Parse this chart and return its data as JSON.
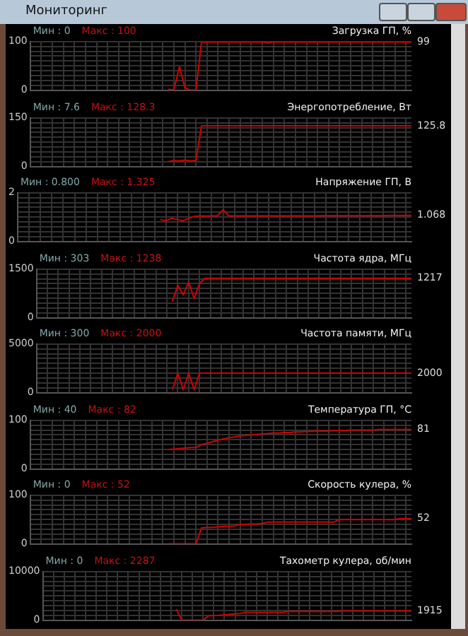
{
  "chart_data": [
    {
      "type": "line",
      "subtitle": "Мониторинг",
      "title": "Загрузка ГП, %",
      "categories": [
        null,
        null,
        null,
        null,
        null,
        null,
        null,
        null,
        null,
        null,
        null,
        null,
        null,
        null,
        null,
        null,
        null,
        null,
        null,
        null,
        null,
        null,
        null,
        null,
        null,
        null,
        null,
        null,
        null,
        null,
        null,
        null,
        null,
        null,
        null,
        null,
        null,
        null,
        null,
        null,
        null,
        null,
        null,
        null,
        null,
        null,
        null,
        null,
        null,
        null,
        null,
        null,
        null,
        null,
        null,
        null,
        null,
        null,
        null,
        null,
        null,
        null,
        null,
        null,
        null,
        null,
        null,
        null,
        null,
        null
      ],
      "series": [
        {
          "color": "#d00000",
          "values": [
            null,
            null,
            null,
            null,
            null,
            null,
            null,
            null,
            null,
            null,
            null,
            null,
            null,
            null,
            null,
            null,
            null,
            null,
            null,
            null,
            null,
            null,
            null,
            null,
            null,
            2,
            0,
            48,
            5,
            0,
            0,
            99,
            99,
            99,
            99,
            99,
            99,
            99,
            99,
            99,
            99,
            99,
            99,
            97,
            99,
            99,
            99,
            99,
            99,
            99,
            99,
            99,
            99,
            99,
            99,
            99,
            99,
            99,
            99,
            99,
            99,
            99,
            99,
            99,
            99,
            99,
            99,
            99,
            99,
            99
          ]
        }
      ],
      "ylim": [
        0,
        100
      ],
      "yticks": [
        0,
        {
          "value": 10,
          "label": null
        },
        {
          "value": 20,
          "label": null
        },
        {
          "value": 30,
          "label": null
        },
        {
          "value": 40,
          "label": null
        },
        {
          "value": 50,
          "label": null
        },
        {
          "value": 60,
          "label": null
        },
        {
          "value": 70,
          "label": null
        },
        {
          "value": 80,
          "label": null
        },
        {
          "value": 90,
          "label": null
        },
        100
      ],
      "annotations": [
        "Мин : 0",
        "Макс : 100",
        "99"
      ],
      "grid": true,
      "legend": false,
      "marker": "none",
      "line_style": "solid",
      "tick_labels": "y"
    },
    {
      "type": "line",
      "title": "Энергопотребление, Вт",
      "categories": [
        null,
        null,
        null,
        null,
        null,
        null,
        null,
        null,
        null,
        null,
        null,
        null,
        null,
        null,
        null,
        null,
        null,
        null,
        null,
        null,
        null,
        null,
        null,
        null,
        null,
        null,
        null,
        null,
        null,
        null,
        null,
        null,
        null,
        null,
        null,
        null,
        null,
        null,
        null,
        null,
        null,
        null,
        null,
        null,
        null,
        null,
        null,
        null,
        null,
        null,
        null,
        null,
        null,
        null,
        null,
        null,
        null,
        null,
        null,
        null,
        null,
        null,
        null,
        null,
        null,
        null,
        null,
        null,
        null,
        null
      ],
      "series": [
        {
          "color": "#d00000",
          "values": [
            null,
            null,
            null,
            null,
            null,
            null,
            null,
            null,
            null,
            null,
            null,
            null,
            null,
            null,
            null,
            null,
            null,
            null,
            null,
            null,
            null,
            null,
            null,
            null,
            null,
            15,
            18,
            17,
            20,
            17,
            19,
            125.8,
            125.8,
            125.8,
            125.8,
            125.8,
            125.8,
            125.8,
            125.8,
            125.8,
            125.8,
            125.8,
            125.8,
            125.8,
            125.8,
            125.8,
            125.8,
            125.8,
            125.8,
            125.8,
            125.8,
            125.8,
            125.8,
            125.8,
            125.8,
            125.8,
            125.8,
            125.8,
            125.8,
            125.8,
            125.8,
            125.8,
            125.8,
            125.8,
            125.8,
            125.8,
            125.8,
            125.8,
            125.8,
            125.8
          ]
        }
      ],
      "ylim": [
        0,
        150
      ],
      "yticks": [
        0,
        {
          "value": 15,
          "label": null
        },
        {
          "value": 30,
          "label": null
        },
        {
          "value": 45,
          "label": null
        },
        {
          "value": 60,
          "label": null
        },
        {
          "value": 75,
          "label": null
        },
        {
          "value": 90,
          "label": null
        },
        {
          "value": 105,
          "label": null
        },
        {
          "value": 120,
          "label": null
        },
        {
          "value": 135,
          "label": null
        },
        150
      ],
      "annotations": [
        "Мин : 7.6",
        "Макс : 128.3",
        "125.8"
      ],
      "grid": true,
      "legend": false,
      "marker": "none",
      "line_style": "solid",
      "tick_labels": "y"
    },
    {
      "type": "line",
      "title": "Напряжение ГП, В",
      "categories": [
        null,
        null,
        null,
        null,
        null,
        null,
        null,
        null,
        null,
        null,
        null,
        null,
        null,
        null,
        null,
        null,
        null,
        null,
        null,
        null,
        null,
        null,
        null,
        null,
        null,
        null,
        null,
        null,
        null,
        null,
        null,
        null,
        null,
        null,
        null,
        null,
        null,
        null,
        null,
        null,
        null,
        null,
        null,
        null,
        null,
        null,
        null,
        null,
        null,
        null,
        null,
        null,
        null,
        null,
        null,
        null,
        null,
        null,
        null,
        null,
        null,
        null,
        null,
        null,
        null,
        null,
        null,
        null,
        null,
        null
      ],
      "series": [
        {
          "color": "#d00000",
          "values": [
            null,
            null,
            null,
            null,
            null,
            null,
            null,
            null,
            null,
            null,
            null,
            null,
            null,
            null,
            null,
            null,
            null,
            null,
            null,
            null,
            null,
            null,
            null,
            null,
            null,
            0.9,
            0.85,
            0.95,
            0.9,
            0.85,
            0.95,
            1.03,
            1.05,
            1.04,
            1.05,
            1.05,
            1.3,
            1.05,
            1.05,
            1.05,
            1.05,
            1.05,
            1.05,
            1.05,
            1.05,
            1.05,
            1.05,
            1.05,
            1.05,
            1.05,
            1.05,
            1.05,
            1.05,
            1.06,
            1.06,
            1.06,
            1.06,
            1.06,
            1.06,
            1.06,
            1.06,
            1.06,
            1.06,
            1.06,
            1.06,
            1.068,
            1.068,
            1.068,
            1.068,
            1.068
          ]
        }
      ],
      "ylim": [
        0,
        2
      ],
      "yticks": [
        0,
        {
          "value": 0.2,
          "label": null
        },
        {
          "value": 0.4,
          "label": null
        },
        {
          "value": 0.6,
          "label": null
        },
        {
          "value": 0.8,
          "label": null
        },
        {
          "value": 1,
          "label": null
        },
        {
          "value": 1.2,
          "label": null
        },
        {
          "value": 1.4,
          "label": null
        },
        {
          "value": 1.6,
          "label": null
        },
        {
          "value": 1.8,
          "label": null
        },
        2
      ],
      "annotations": [
        "Мин : 0.800",
        "Макс : 1.325",
        "1.068"
      ],
      "grid": true,
      "legend": false,
      "marker": "none",
      "line_style": "solid",
      "tick_labels": "y"
    },
    {
      "type": "line",
      "title": "Частота ядра, МГц",
      "categories": [
        null,
        null,
        null,
        null,
        null,
        null,
        null,
        null,
        null,
        null,
        null,
        null,
        null,
        null,
        null,
        null,
        null,
        null,
        null,
        null,
        null,
        null,
        null,
        null,
        null,
        null,
        null,
        null,
        null,
        null,
        null,
        null,
        null,
        null,
        null,
        null,
        null,
        null,
        null,
        null,
        null,
        null,
        null,
        null,
        null,
        null,
        null,
        null,
        null,
        null,
        null,
        null,
        null,
        null,
        null,
        null,
        null,
        null,
        null,
        null,
        null,
        null,
        null,
        null,
        null,
        null,
        null,
        null,
        null,
        null
      ],
      "series": [
        {
          "color": "#d00000",
          "values": [
            null,
            null,
            null,
            null,
            null,
            null,
            null,
            null,
            null,
            null,
            null,
            null,
            null,
            null,
            null,
            null,
            null,
            null,
            null,
            null,
            null,
            null,
            null,
            null,
            null,
            500,
            1000,
            700,
            1100,
            600,
            1050,
            1217,
            1217,
            1217,
            1217,
            1217,
            1217,
            1217,
            1217,
            1217,
            1217,
            1217,
            1217,
            1217,
            1217,
            1217,
            1217,
            1217,
            1217,
            1217,
            1217,
            1217,
            1217,
            1217,
            1217,
            1217,
            1217,
            1217,
            1217,
            1217,
            1217,
            1217,
            1217,
            1217,
            1217,
            1217,
            1217,
            1217,
            1217,
            1217
          ]
        }
      ],
      "ylim": [
        0,
        1500
      ],
      "yticks": [
        0,
        {
          "value": 150,
          "label": null
        },
        {
          "value": 300,
          "label": null
        },
        {
          "value": 450,
          "label": null
        },
        {
          "value": 600,
          "label": null
        },
        {
          "value": 750,
          "label": null
        },
        {
          "value": 900,
          "label": null
        },
        {
          "value": 1050,
          "label": null
        },
        {
          "value": 1200,
          "label": null
        },
        {
          "value": 1350,
          "label": null
        },
        1500
      ],
      "annotations": [
        "Мин : 303",
        "Макс : 1238",
        "1217"
      ],
      "grid": true,
      "legend": false,
      "marker": "none",
      "line_style": "solid",
      "tick_labels": "y"
    },
    {
      "type": "line",
      "title": "Частота памяти, МГц",
      "categories": [
        null,
        null,
        null,
        null,
        null,
        null,
        null,
        null,
        null,
        null,
        null,
        null,
        null,
        null,
        null,
        null,
        null,
        null,
        null,
        null,
        null,
        null,
        null,
        null,
        null,
        null,
        null,
        null,
        null,
        null,
        null,
        null,
        null,
        null,
        null,
        null,
        null,
        null,
        null,
        null,
        null,
        null,
        null,
        null,
        null,
        null,
        null,
        null,
        null,
        null,
        null,
        null,
        null,
        null,
        null,
        null,
        null,
        null,
        null,
        null,
        null,
        null,
        null,
        null,
        null,
        null,
        null,
        null,
        null,
        null
      ],
      "series": [
        {
          "color": "#d00000",
          "values": [
            null,
            null,
            null,
            null,
            null,
            null,
            null,
            null,
            null,
            null,
            null,
            null,
            null,
            null,
            null,
            null,
            null,
            null,
            null,
            null,
            null,
            null,
            null,
            null,
            null,
            300,
            2000,
            300,
            2000,
            300,
            2000,
            2000,
            2000,
            2000,
            2000,
            2000,
            2000,
            2000,
            2000,
            2000,
            2000,
            2000,
            2000,
            2000,
            2000,
            2000,
            2000,
            2000,
            2000,
            2000,
            2000,
            2000,
            2000,
            2000,
            2000,
            2000,
            2000,
            2000,
            2000,
            2000,
            2000,
            2000,
            2000,
            2000,
            2000,
            2000,
            2000,
            2000,
            2000,
            2000
          ]
        }
      ],
      "ylim": [
        0,
        5000
      ],
      "yticks": [
        0,
        {
          "value": 500,
          "label": null
        },
        {
          "value": 1000,
          "label": null
        },
        {
          "value": 1500,
          "label": null
        },
        {
          "value": 2000,
          "label": null
        },
        {
          "value": 2500,
          "label": null
        },
        {
          "value": 3000,
          "label": null
        },
        {
          "value": 3500,
          "label": null
        },
        {
          "value": 4000,
          "label": null
        },
        {
          "value": 4500,
          "label": null
        },
        5000
      ],
      "annotations": [
        "Мин : 300",
        "Макс : 2000",
        "2000"
      ],
      "grid": true,
      "legend": false,
      "marker": "none",
      "line_style": "solid",
      "tick_labels": "y"
    },
    {
      "type": "line",
      "title": "Температура ГП, °C",
      "categories": [
        null,
        null,
        null,
        null,
        null,
        null,
        null,
        null,
        null,
        null,
        null,
        null,
        null,
        null,
        null,
        null,
        null,
        null,
        null,
        null,
        null,
        null,
        null,
        null,
        null,
        null,
        null,
        null,
        null,
        null,
        null,
        null,
        null,
        null,
        null,
        null,
        null,
        null,
        null,
        null,
        null,
        null,
        null,
        null,
        null,
        null,
        null,
        null,
        null,
        null,
        null,
        null,
        null,
        null,
        null,
        null,
        null,
        null,
        null,
        null,
        null,
        null,
        null,
        null,
        null,
        null,
        null,
        null,
        null,
        null
      ],
      "series": [
        {
          "color": "#d00000",
          "values": [
            null,
            null,
            null,
            null,
            null,
            null,
            null,
            null,
            null,
            null,
            null,
            null,
            null,
            null,
            null,
            null,
            null,
            null,
            null,
            null,
            null,
            null,
            null,
            null,
            null,
            40,
            41,
            42,
            43,
            44,
            44,
            50,
            53,
            56,
            59,
            62,
            64,
            66,
            68,
            69,
            70,
            71,
            72,
            73,
            74,
            74,
            75,
            75,
            76,
            76,
            77,
            77,
            78,
            78,
            78,
            79,
            79,
            79,
            80,
            80,
            80,
            80,
            80,
            81,
            81,
            81,
            81,
            81,
            81,
            81
          ]
        }
      ],
      "ylim": [
        0,
        100
      ],
      "yticks": [
        0,
        {
          "value": 10,
          "label": null
        },
        {
          "value": 20,
          "label": null
        },
        {
          "value": 30,
          "label": null
        },
        {
          "value": 40,
          "label": null
        },
        {
          "value": 50,
          "label": null
        },
        {
          "value": 60,
          "label": null
        },
        {
          "value": 70,
          "label": null
        },
        {
          "value": 80,
          "label": null
        },
        {
          "value": 90,
          "label": null
        },
        100
      ],
      "annotations": [
        "Мин : 40",
        "Макс : 82",
        "81"
      ],
      "grid": true,
      "legend": false,
      "marker": "none",
      "line_style": "solid",
      "tick_labels": "y"
    },
    {
      "type": "line",
      "title": "Скорость кулера, %",
      "categories": [
        null,
        null,
        null,
        null,
        null,
        null,
        null,
        null,
        null,
        null,
        null,
        null,
        null,
        null,
        null,
        null,
        null,
        null,
        null,
        null,
        null,
        null,
        null,
        null,
        null,
        null,
        null,
        null,
        null,
        null,
        null,
        null,
        null,
        null,
        null,
        null,
        null,
        null,
        null,
        null,
        null,
        null,
        null,
        null,
        null,
        null,
        null,
        null,
        null,
        null,
        null,
        null,
        null,
        null,
        null,
        null,
        null,
        null,
        null,
        null,
        null,
        null,
        null,
        null,
        null,
        null,
        null,
        null,
        null,
        null
      ],
      "series": [
        {
          "color": "#d00000",
          "values": [
            null,
            null,
            null,
            null,
            null,
            null,
            null,
            null,
            null,
            null,
            null,
            null,
            null,
            null,
            null,
            null,
            null,
            null,
            null,
            null,
            null,
            null,
            null,
            null,
            null,
            0,
            0,
            0,
            0,
            0,
            0,
            33,
            34,
            34,
            35,
            36,
            36,
            37,
            40,
            40,
            41,
            41,
            42,
            45,
            45,
            45,
            45,
            45,
            45,
            45,
            45,
            45,
            45,
            45,
            45,
            45,
            50,
            50,
            50,
            50,
            50,
            50,
            50,
            50,
            50,
            50,
            50,
            52,
            52,
            52
          ]
        }
      ],
      "ylim": [
        0,
        100
      ],
      "yticks": [
        0,
        {
          "value": 10,
          "label": null
        },
        {
          "value": 20,
          "label": null
        },
        {
          "value": 30,
          "label": null
        },
        {
          "value": 40,
          "label": null
        },
        {
          "value": 50,
          "label": null
        },
        {
          "value": 60,
          "label": null
        },
        {
          "value": 70,
          "label": null
        },
        {
          "value": 80,
          "label": null
        },
        {
          "value": 90,
          "label": null
        },
        100
      ],
      "annotations": [
        "Мин : 0",
        "Макс : 52",
        "52"
      ],
      "grid": true,
      "legend": false,
      "marker": "none",
      "line_style": "solid",
      "tick_labels": "y"
    },
    {
      "type": "line",
      "title": "Тахометр кулера, об/мин",
      "categories": [
        null,
        null,
        null,
        null,
        null,
        null,
        null,
        null,
        null,
        null,
        null,
        null,
        null,
        null,
        null,
        null,
        null,
        null,
        null,
        null,
        null,
        null,
        null,
        null,
        null,
        null,
        null,
        null,
        null,
        null,
        null,
        null,
        null,
        null,
        null,
        null,
        null,
        null,
        null,
        null,
        null,
        null,
        null,
        null,
        null,
        null,
        null,
        null,
        null,
        null,
        null,
        null,
        null,
        null,
        null,
        null,
        null,
        null,
        null,
        null,
        null,
        null,
        null,
        null,
        null,
        null,
        null,
        null,
        null,
        null
      ],
      "series": [
        {
          "color": "#d00000",
          "values": [
            null,
            null,
            null,
            null,
            null,
            null,
            null,
            null,
            null,
            null,
            null,
            null,
            null,
            null,
            null,
            null,
            null,
            null,
            null,
            null,
            null,
            null,
            null,
            null,
            null,
            2287,
            0,
            0,
            0,
            0,
            0,
            900,
            950,
            1000,
            1100,
            1200,
            1300,
            1400,
            1600,
            1600,
            1600,
            1600,
            1600,
            1600,
            1600,
            1600,
            1800,
            1800,
            1800,
            1800,
            1800,
            1800,
            1800,
            1800,
            1800,
            1800,
            1915,
            1915,
            1915,
            1915,
            1915,
            1915,
            1915,
            1915,
            1915,
            1915,
            1915,
            1915,
            1915,
            1915
          ]
        }
      ],
      "ylim": [
        0,
        10000
      ],
      "yticks": [
        0,
        {
          "value": 1000,
          "label": null
        },
        {
          "value": 2000,
          "label": null
        },
        {
          "value": 3000,
          "label": null
        },
        {
          "value": 4000,
          "label": null
        },
        {
          "value": 5000,
          "label": null
        },
        {
          "value": 6000,
          "label": null
        },
        {
          "value": 7000,
          "label": null
        },
        {
          "value": 8000,
          "label": null
        },
        {
          "value": 9000,
          "label": null
        },
        10000
      ],
      "annotations": [
        "Мин : 0",
        "Макс : 2287",
        "1915"
      ],
      "grid": true,
      "legend": false,
      "marker": "none",
      "line_style": "solid",
      "tick_labels": "y"
    }
  ]
}
